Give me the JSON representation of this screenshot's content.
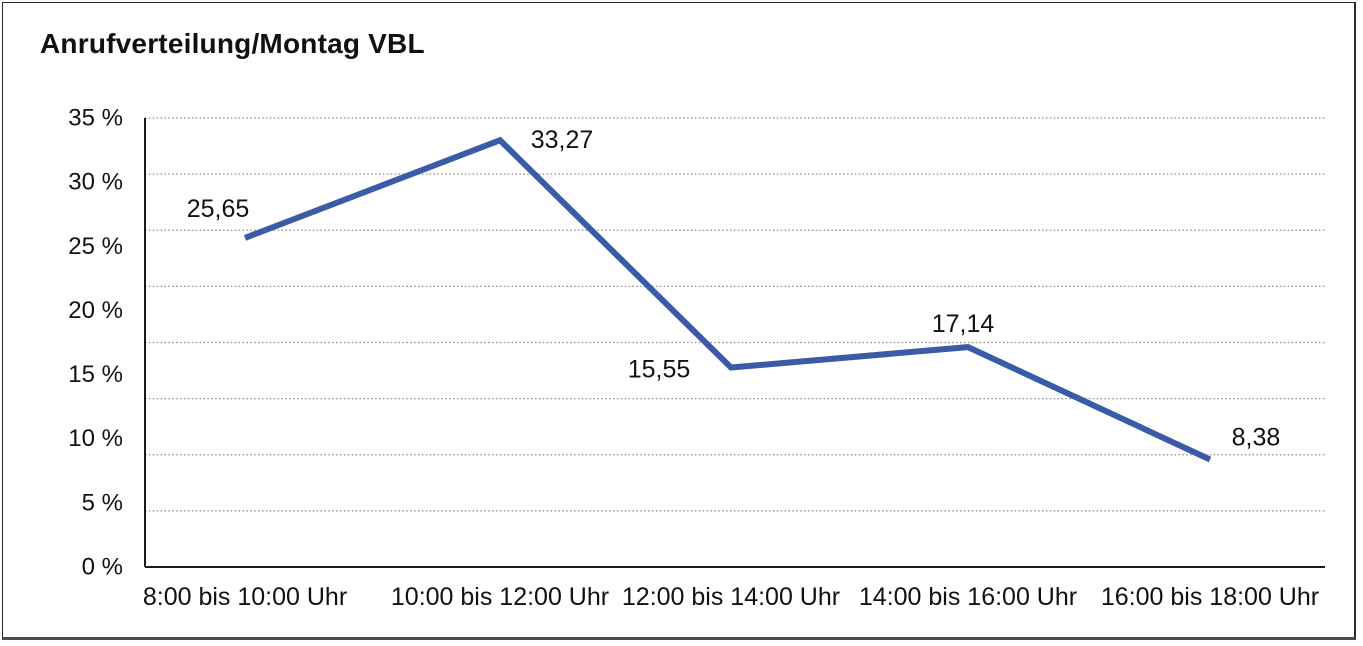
{
  "title": "Anrufverteilung/Montag VBL",
  "chart_data": {
    "type": "line",
    "title": "Anrufverteilung/Montag VBL",
    "categories": [
      "8:00 bis 10:00 Uhr",
      "10:00 bis 12:00 Uhr",
      "12:00 bis 14:00 Uhr",
      "14:00 bis 16:00 Uhr",
      "16:00 bis 18:00 Uhr"
    ],
    "values": [
      25.65,
      33.27,
      15.55,
      17.14,
      8.38
    ],
    "data_labels": [
      "25,65",
      "33,27",
      "15,55",
      "17,14",
      "8,38"
    ],
    "ytick_labels": [
      "0 %",
      "5 %",
      "10 %",
      "15 %",
      "20 %",
      "25 %",
      "30 %",
      "35 %"
    ],
    "ytick_step": 5,
    "ylim": [
      0,
      35
    ],
    "grid_divisions": 8,
    "grid_style": "dotted",
    "legend": "none",
    "line_color": "#3A5BA5"
  }
}
